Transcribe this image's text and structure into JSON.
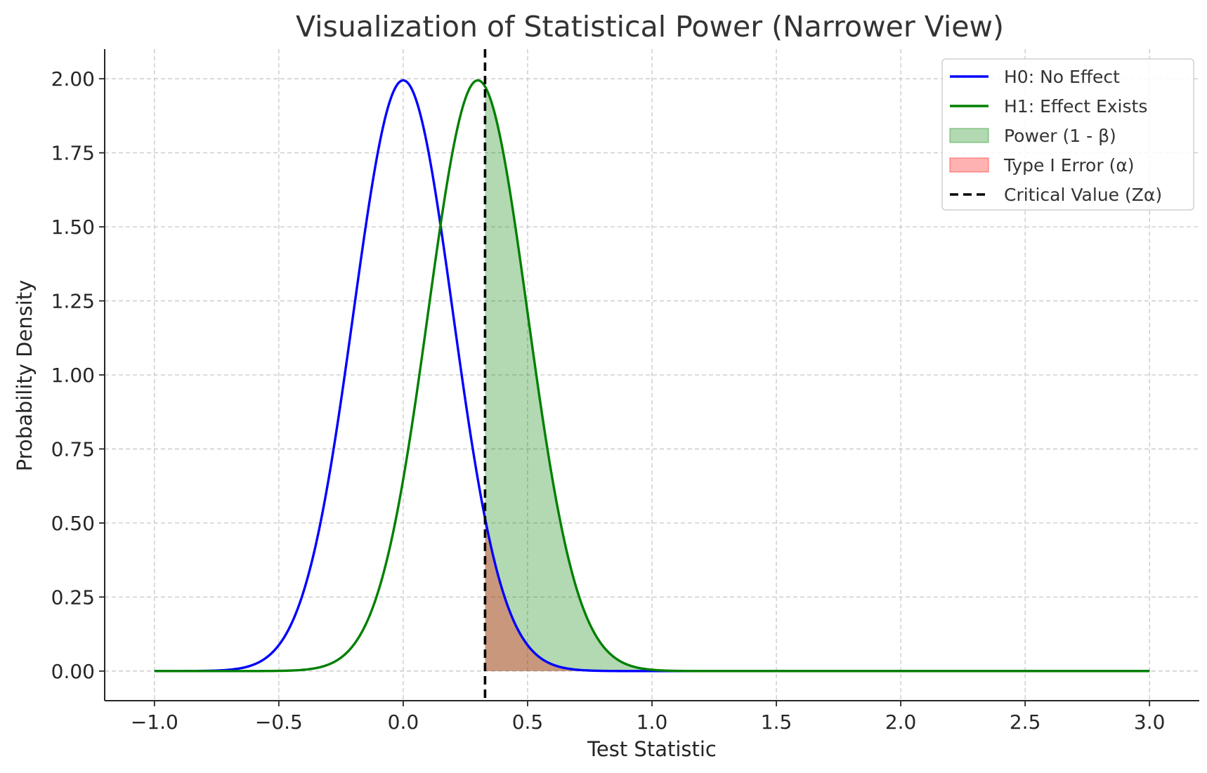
{
  "chart_data": {
    "type": "line",
    "title": "Visualization of Statistical Power (Narrower View)",
    "xlabel": "Test Statistic",
    "ylabel": "Probability Density",
    "xlim": [
      -1.2,
      3.2
    ],
    "ylim": [
      -0.1,
      2.1
    ],
    "x_ticks": [
      -1.0,
      -0.5,
      0.0,
      0.5,
      1.0,
      1.5,
      2.0,
      2.5,
      3.0
    ],
    "x_tick_labels": [
      "−1.0",
      "−0.5",
      "0.0",
      "0.5",
      "1.0",
      "1.5",
      "2.0",
      "2.5",
      "3.0"
    ],
    "y_ticks": [
      0.0,
      0.25,
      0.5,
      0.75,
      1.0,
      1.25,
      1.5,
      1.75,
      2.0
    ],
    "y_tick_labels": [
      "0.00",
      "0.25",
      "0.50",
      "0.75",
      "1.00",
      "1.25",
      "1.50",
      "1.75",
      "2.00"
    ],
    "grid": true,
    "legend_position": "top-right",
    "series": [
      {
        "name": "H0: No Effect",
        "kind": "normal_pdf",
        "mean": 0.0,
        "sd": 0.2,
        "x_range": [
          -1.0,
          3.0
        ],
        "color": "#0000ff"
      },
      {
        "name": "H1: Effect Exists",
        "kind": "normal_pdf",
        "mean": 0.3,
        "sd": 0.2,
        "x_range": [
          -1.0,
          3.0
        ],
        "color": "#008000"
      }
    ],
    "shaded_areas": [
      {
        "name": "Power (1 - β)",
        "under_series": "H1: Effect Exists",
        "from_x": 0.329,
        "color": "#008000",
        "opacity": 0.3
      },
      {
        "name": "Type I Error (α)",
        "under_series": "H0: No Effect",
        "from_x": 0.329,
        "color": "#ff0000",
        "opacity": 0.3
      }
    ],
    "vertical_lines": [
      {
        "name": "Critical Value (Zα)",
        "x": 0.329,
        "color": "#000000",
        "style": "dashed"
      }
    ],
    "legend": [
      {
        "label": "H0: No Effect",
        "kind": "line",
        "color": "#0000ff"
      },
      {
        "label": "H1: Effect Exists",
        "kind": "line",
        "color": "#008000"
      },
      {
        "label": "Power (1 - β)",
        "kind": "patch",
        "color": "#008000",
        "opacity": 0.3
      },
      {
        "label": "Type I Error (α)",
        "kind": "patch",
        "color": "#ff0000",
        "opacity": 0.3
      },
      {
        "label": "Critical Value (Zα)",
        "kind": "dashed",
        "color": "#000000"
      }
    ]
  }
}
